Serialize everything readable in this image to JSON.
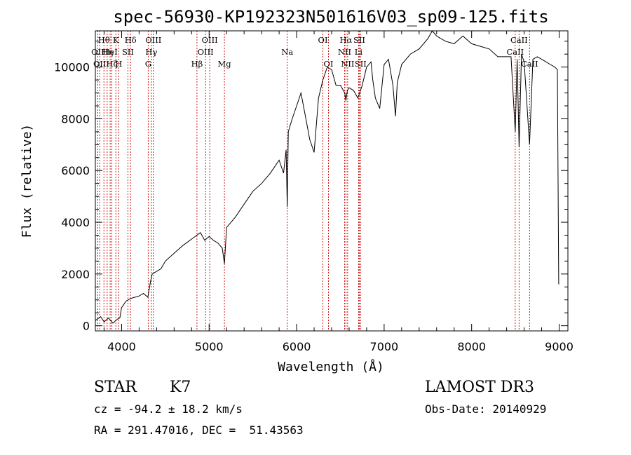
{
  "chart_data": {
    "type": "line",
    "title": "spec-56930-KP192323N501616V03_sp09-125.fits",
    "xlabel": "Wavelength (Å)",
    "ylabel": "Flux (relative)",
    "xlim": [
      3700,
      9100
    ],
    "ylim": [
      -200,
      11400
    ],
    "xticks": [
      4000,
      5000,
      6000,
      7000,
      8000,
      9000
    ],
    "yticks": [
      0,
      2000,
      4000,
      6000,
      8000,
      10000
    ],
    "series": [
      {
        "name": "flux",
        "x": [
          3700,
          3760,
          3800,
          3850,
          3900,
          3950,
          3980,
          4000,
          4050,
          4100,
          4150,
          4200,
          4250,
          4300,
          4330,
          4350,
          4400,
          4450,
          4500,
          4600,
          4700,
          4800,
          4860,
          4900,
          4950,
          5000,
          5050,
          5100,
          5150,
          5175,
          5200,
          5300,
          5400,
          5500,
          5600,
          5700,
          5800,
          5850,
          5880,
          5893,
          5905,
          5950,
          6000,
          6050,
          6100,
          6150,
          6200,
          6250,
          6300,
          6350,
          6400,
          6450,
          6500,
          6550,
          6563,
          6580,
          6600,
          6650,
          6700,
          6750,
          6800,
          6850,
          6870,
          6900,
          6950,
          7000,
          7050,
          7100,
          7130,
          7150,
          7200,
          7300,
          7400,
          7500,
          7550,
          7600,
          7700,
          7800,
          7900,
          8000,
          8100,
          8200,
          8300,
          8400,
          8450,
          8498,
          8520,
          8542,
          8570,
          8600,
          8662,
          8700,
          8750,
          8800,
          8850,
          8900,
          8950,
          8980,
          8995
        ],
        "y": [
          200,
          350,
          150,
          300,
          100,
          250,
          300,
          700,
          950,
          1050,
          1100,
          1150,
          1250,
          1100,
          1700,
          2000,
          2100,
          2200,
          2500,
          2800,
          3100,
          3350,
          3500,
          3600,
          3300,
          3450,
          3300,
          3200,
          3000,
          2400,
          3800,
          4200,
          4700,
          5200,
          5500,
          5900,
          6400,
          5900,
          6800,
          4600,
          7500,
          8000,
          8500,
          9000,
          8100,
          7200,
          6700,
          8800,
          9500,
          10000,
          9900,
          9300,
          9300,
          9000,
          8700,
          9100,
          9200,
          9100,
          8800,
          9300,
          10000,
          10200,
          9500,
          8800,
          8400,
          10100,
          10300,
          9300,
          8100,
          9400,
          10100,
          10500,
          10700,
          11100,
          11400,
          11200,
          11000,
          10900,
          11200,
          10900,
          10800,
          10700,
          10400,
          10400,
          10400,
          7500,
          10300,
          6900,
          10500,
          10200,
          7000,
          10300,
          10400,
          10300,
          10200,
          10100,
          10000,
          9900,
          1600
        ]
      }
    ],
    "spectral_lines": [
      {
        "wavelength": 3727,
        "row": 1,
        "label": "OII"
      },
      {
        "wavelength": 3750,
        "row": 2,
        "label": "OII"
      },
      {
        "wavelength": 3798,
        "row": 0,
        "label": "Hθ"
      },
      {
        "wavelength": 3835,
        "row": 1,
        "label": "Hη"
      },
      {
        "wavelength": 3869,
        "row": 1,
        "label": "HeI"
      },
      {
        "wavelength": 3889,
        "row": 2,
        "label": "Hζ"
      },
      {
        "wavelength": 3934,
        "row": 0,
        "label": "K"
      },
      {
        "wavelength": 3968,
        "row": 2,
        "label": "H"
      },
      {
        "wavelength": 4072,
        "row": 1,
        "label": "SII"
      },
      {
        "wavelength": 4102,
        "row": 0,
        "label": "Hδ"
      },
      {
        "wavelength": 4304,
        "row": 2,
        "label": "G"
      },
      {
        "wavelength": 4340,
        "row": 1,
        "label": "Hγ"
      },
      {
        "wavelength": 4363,
        "row": 0,
        "label": "OIII"
      },
      {
        "wavelength": 4861,
        "row": 2,
        "label": "Hβ"
      },
      {
        "wavelength": 4959,
        "row": 1,
        "label": "OIII"
      },
      {
        "wavelength": 5007,
        "row": 0,
        "label": "OIII"
      },
      {
        "wavelength": 5175,
        "row": 2,
        "label": "Mg"
      },
      {
        "wavelength": 5893,
        "row": 1,
        "label": "Na"
      },
      {
        "wavelength": 6300,
        "row": 0,
        "label": "OI"
      },
      {
        "wavelength": 6364,
        "row": 2,
        "label": "OI"
      },
      {
        "wavelength": 6548,
        "row": 1,
        "label": "NII"
      },
      {
        "wavelength": 6563,
        "row": 0,
        "label": "Hα"
      },
      {
        "wavelength": 6583,
        "row": 2,
        "label": "NII"
      },
      {
        "wavelength": 6708,
        "row": 1,
        "label": "Li"
      },
      {
        "wavelength": 6716,
        "row": 0,
        "label": "SII"
      },
      {
        "wavelength": 6731,
        "row": 2,
        "label": "SII"
      },
      {
        "wavelength": 8498,
        "row": 1,
        "label": "CaII"
      },
      {
        "wavelength": 8542,
        "row": 0,
        "label": "CaII"
      },
      {
        "wavelength": 8662,
        "row": 2,
        "label": "CaII"
      }
    ],
    "grid": false,
    "legend": "none"
  },
  "info": {
    "class_label": "STAR",
    "subclass_label": "K7",
    "survey": "LAMOST DR3",
    "cz_text": "cz = -94.2 ± 18.2 km/s",
    "obs_date": "Obs-Date: 20140929",
    "coords_text": "RA = 291.47016, DEC =  51.43563"
  },
  "colors": {
    "spectrum": "#000000",
    "line_markers": "#cc0000",
    "axes": "#000000",
    "background": "#ffffff"
  }
}
